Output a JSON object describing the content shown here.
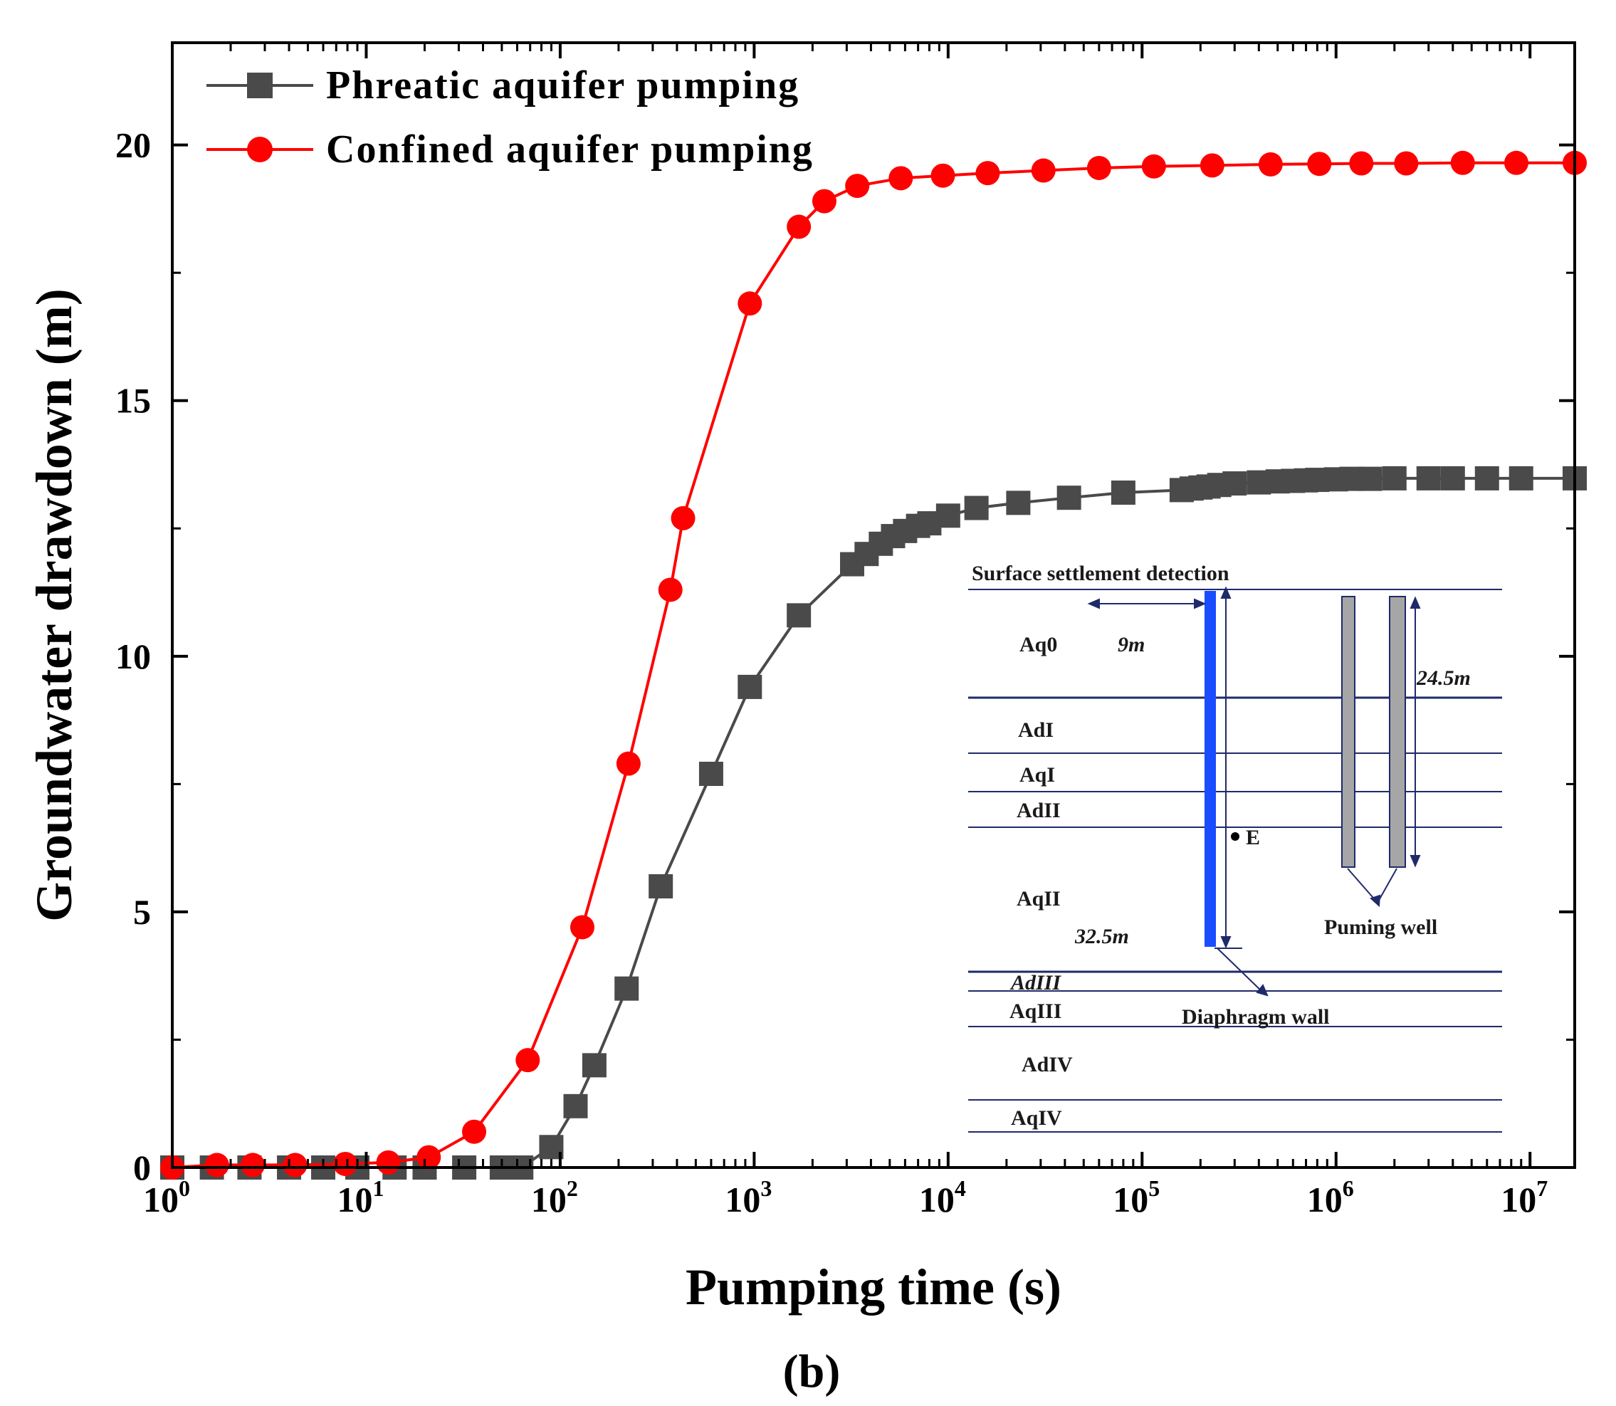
{
  "chart_data": {
    "type": "line",
    "xscale": "log",
    "xlim": [
      1,
      17000000
    ],
    "ylim": [
      0,
      22
    ],
    "xlabel": "Pumping time (s)",
    "ylabel": "Groundwater drawdown (m)",
    "x_ticks": [
      {
        "base": "10",
        "exp": "0",
        "value": 1
      },
      {
        "base": "10",
        "exp": "1",
        "value": 10
      },
      {
        "base": "10",
        "exp": "2",
        "value": 100
      },
      {
        "base": "10",
        "exp": "3",
        "value": 1000
      },
      {
        "base": "10",
        "exp": "4",
        "value": 10000
      },
      {
        "base": "10",
        "exp": "5",
        "value": 100000
      },
      {
        "base": "10",
        "exp": "6",
        "value": 1000000
      },
      {
        "base": "10",
        "exp": "7",
        "value": 10000000
      }
    ],
    "y_ticks": [
      {
        "label": "0",
        "value": 0
      },
      {
        "label": "5",
        "value": 5
      },
      {
        "label": "10",
        "value": 10
      },
      {
        "label": "15",
        "value": 15
      },
      {
        "label": "20",
        "value": 20
      }
    ],
    "legend_position": "top-left",
    "series": [
      {
        "name": "Phreatic aquifer pumping",
        "color": "#4a4a4a",
        "marker": "square",
        "x": [
          1,
          1.6,
          2.5,
          4,
          6,
          9,
          14,
          20,
          32,
          50,
          63,
          90,
          120,
          150,
          220,
          330,
          600,
          950,
          1700,
          3200,
          3800,
          4500,
          5200,
          6000,
          7000,
          8000,
          10000,
          14000,
          23000,
          42000,
          80000,
          160000,
          180000,
          200000,
          220000,
          250000,
          300000,
          400000,
          500000,
          600000,
          700000,
          800000,
          1000000,
          1200000,
          1500000,
          2000000,
          3000000,
          4000000,
          6000000,
          9000000,
          17000000
        ],
        "values": [
          0,
          0,
          0,
          0,
          0,
          0,
          0,
          0,
          0,
          0,
          0,
          0.4,
          1.2,
          2.0,
          3.5,
          5.5,
          7.7,
          9.4,
          10.8,
          11.8,
          12.0,
          12.2,
          12.35,
          12.45,
          12.55,
          12.6,
          12.75,
          12.9,
          13.0,
          13.1,
          13.2,
          13.25,
          13.28,
          13.3,
          13.32,
          13.35,
          13.38,
          13.4,
          13.42,
          13.43,
          13.44,
          13.45,
          13.46,
          13.47,
          13.47,
          13.48,
          13.48,
          13.48,
          13.48,
          13.48,
          13.48
        ]
      },
      {
        "name": "Confined aquifer pumping",
        "color": "#ff0000",
        "marker": "circle",
        "x": [
          1,
          1.7,
          2.6,
          4.3,
          7.8,
          13,
          21,
          36,
          68,
          130,
          225,
          370,
          430,
          950,
          1700,
          2300,
          3400,
          5700,
          9400,
          16000,
          31000,
          60000,
          115000,
          230000,
          460000,
          820000,
          1350000,
          2300000,
          4500000,
          8500000,
          17000000
        ],
        "values": [
          0,
          0.05,
          0.05,
          0.05,
          0.07,
          0.1,
          0.2,
          0.7,
          2.1,
          4.7,
          7.9,
          11.3,
          12.7,
          16.9,
          18.4,
          18.9,
          19.2,
          19.35,
          19.4,
          19.45,
          19.5,
          19.55,
          19.58,
          19.6,
          19.62,
          19.63,
          19.64,
          19.64,
          19.65,
          19.65,
          19.65
        ]
      }
    ]
  },
  "inset": {
    "title": "Surface settlement detection",
    "layers": [
      "Aq0",
      "AdI",
      "AqI",
      "AdII",
      "AqII",
      "AdIII",
      "AqIII",
      "AdIV",
      "AqIV"
    ],
    "dim_9m": "9m",
    "dim_24_5m": "24.5m",
    "dim_32_5m": "32.5m",
    "point_label": "E",
    "well_label": "Puming well",
    "wall_label": "Diaphragm wall",
    "wall_color": "#1a4dff",
    "well_color": "#a6a6a6",
    "line_color": "#1f2a6b"
  },
  "caption": "(b)"
}
